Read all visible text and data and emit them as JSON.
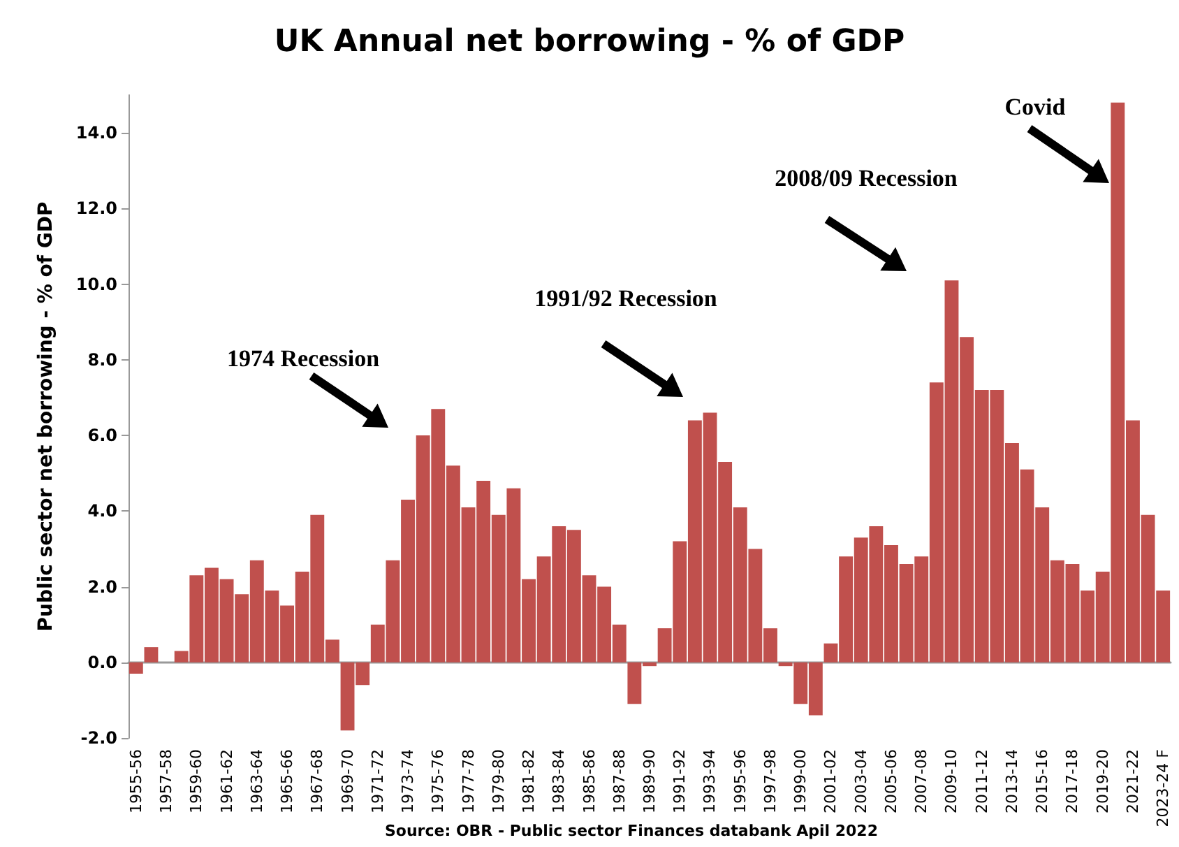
{
  "chart_data": {
    "type": "bar",
    "title": "UK Annual net borrowing - % of GDP",
    "ylabel": "Public sector net borrowing - % of GDP",
    "categories": [
      "1955-56",
      null,
      "1957-58",
      null,
      "1959-60",
      null,
      "1961-62",
      null,
      "1963-64",
      null,
      "1965-66",
      null,
      "1967-68",
      null,
      "1969-70",
      null,
      "1971-72",
      null,
      "1973-74",
      null,
      "1975-76",
      null,
      "1977-78",
      null,
      "1979-80",
      null,
      "1981-82",
      null,
      "1983-84",
      null,
      "1985-86",
      null,
      "1987-88",
      null,
      "1989-90",
      null,
      "1991-92",
      null,
      "1993-94",
      null,
      "1995-96",
      null,
      "1997-98",
      null,
      "1999-00",
      null,
      "2001-02",
      null,
      "2003-04",
      null,
      "2005-06",
      null,
      "2007-08",
      null,
      "2009-10",
      null,
      "2011-12",
      null,
      "2013-14",
      null,
      "2015-16",
      null,
      "2017-18",
      null,
      "2019-20",
      null,
      "2021-22",
      null,
      "2023-24 F"
    ],
    "values": [
      -0.3,
      0.4,
      null,
      0.3,
      2.3,
      2.5,
      2.2,
      1.8,
      2.7,
      1.9,
      1.5,
      2.4,
      3.9,
      0.6,
      -1.8,
      -0.6,
      1.0,
      2.7,
      4.3,
      6.0,
      6.7,
      5.2,
      4.1,
      4.8,
      3.9,
      4.6,
      2.2,
      2.8,
      3.6,
      3.5,
      2.3,
      2.0,
      1.0,
      -1.1,
      -0.1,
      0.9,
      3.2,
      6.4,
      6.6,
      5.3,
      4.1,
      3.0,
      0.9,
      -0.1,
      -1.1,
      -1.4,
      0.5,
      2.8,
      3.3,
      3.6,
      3.1,
      2.6,
      2.8,
      7.4,
      10.1,
      8.6,
      7.2,
      7.2,
      5.8,
      5.1,
      4.1,
      2.7,
      2.6,
      1.9,
      2.4,
      14.8,
      6.4,
      3.9,
      1.9
    ],
    "color": "#c0504d",
    "ylim": [
      -2,
      15
    ],
    "yticks": [
      {
        "value": -2,
        "label": "-2.0"
      },
      {
        "value": 0,
        "label": "0.0"
      },
      {
        "value": 2,
        "label": "2.0"
      },
      {
        "value": 4,
        "label": "4.0"
      },
      {
        "value": 6,
        "label": "6.0"
      },
      {
        "value": 8,
        "label": "8.0"
      },
      {
        "value": 10,
        "label": "10.0"
      },
      {
        "value": 12,
        "label": "12.0"
      },
      {
        "value": 14,
        "label": "14.0"
      }
    ],
    "annotations": [
      "1974 Recession",
      "1991/92 Recession",
      "2008/09 Recession",
      "Covid",
      "Source: OBR - Public sector Finances databank Apil 2022"
    ]
  }
}
